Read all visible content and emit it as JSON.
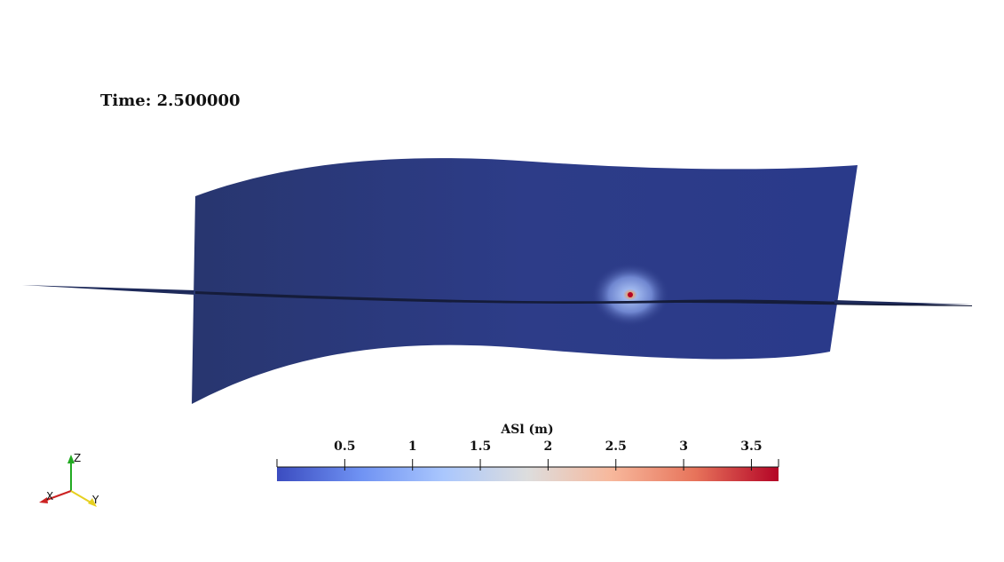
{
  "time_label": "Time: 2.500000",
  "colorbar": {
    "title": "ASl (m)",
    "range": [
      0.0,
      3.7
    ],
    "ticks": [
      "0.5",
      "1",
      "1.5",
      "2",
      "2.5",
      "3",
      "3.5"
    ],
    "tick_values": [
      0.5,
      1,
      1.5,
      2,
      2.5,
      3,
      3.5
    ],
    "colormap": [
      "#3b4cc0",
      "#6f92f3",
      "#aac7fd",
      "#dddddd",
      "#f7b89c",
      "#e7745b",
      "#b40426"
    ]
  },
  "scene": {
    "surface_color": "#2b3a86",
    "fault_line_color": "#1a2040",
    "source_peak_color": "#b40426"
  },
  "axes": {
    "x_label": "X",
    "y_label": "Y",
    "z_label": "Z",
    "x_color": "#cc2222",
    "y_color": "#e6d020",
    "z_color": "#22aa22"
  }
}
